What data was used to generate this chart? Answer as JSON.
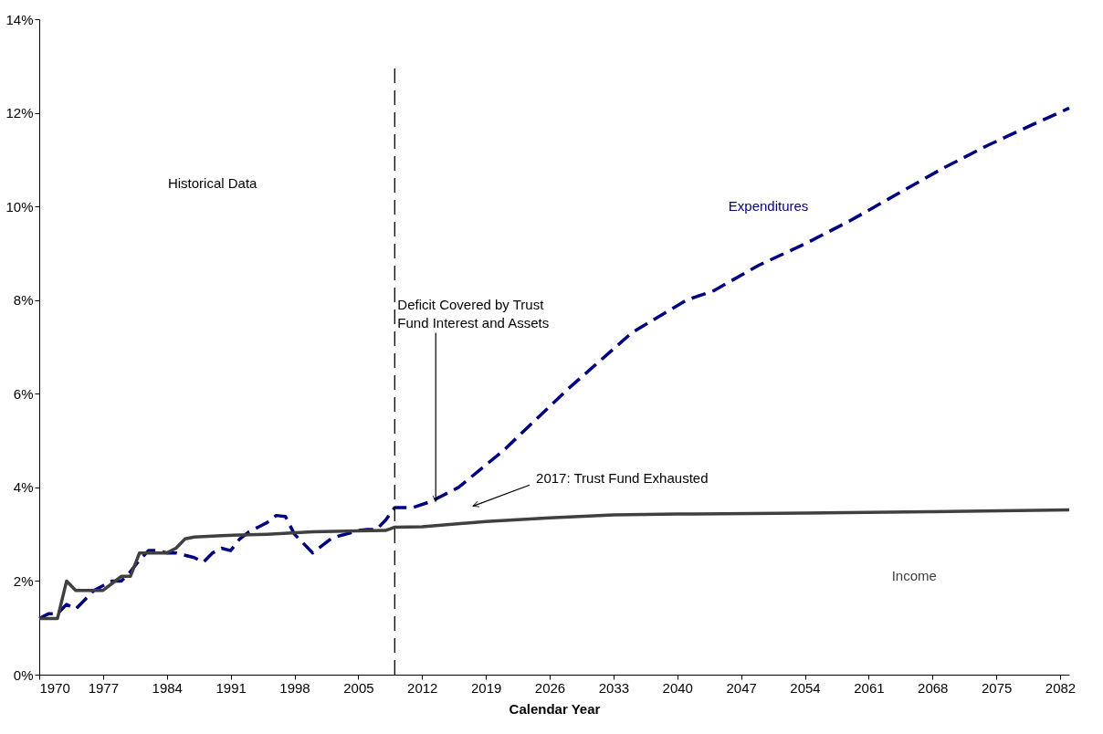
{
  "chart_data": {
    "type": "line",
    "xlabel": "Calendar Year",
    "xlim": [
      1970,
      2083
    ],
    "xticks": [
      1970,
      1977,
      1984,
      1991,
      1998,
      2005,
      2012,
      2019,
      2026,
      2033,
      2040,
      2047,
      2054,
      2061,
      2068,
      2075,
      2082
    ],
    "ylim": [
      0,
      14
    ],
    "yticks": [
      {
        "value": 0,
        "label": "0%"
      },
      {
        "value": 2,
        "label": "2%"
      },
      {
        "value": 4,
        "label": "4%"
      },
      {
        "value": 6,
        "label": "6%"
      },
      {
        "value": 8,
        "label": "8%"
      },
      {
        "value": 10,
        "label": "10%"
      },
      {
        "value": 12,
        "label": "12%"
      },
      {
        "value": 14,
        "label": "14%"
      }
    ],
    "grid": false,
    "legend": false,
    "marker": "none",
    "series": [
      {
        "name": "Expenditures",
        "color": "#000080",
        "line_style": "dashed",
        "x": [
          1970,
          1971,
          1972,
          1973,
          1974,
          1975,
          1976,
          1977,
          1978,
          1979,
          1980,
          1981,
          1982,
          1983,
          1984,
          1985,
          1986,
          1987,
          1988,
          1989,
          1990,
          1991,
          1992,
          1993,
          1994,
          1995,
          1996,
          1997,
          1998,
          1999,
          2000,
          2001,
          2002,
          2003,
          2004,
          2005,
          2006,
          2007,
          2008,
          2009,
          2011,
          2013,
          2016,
          2021,
          2028,
          2035,
          2041,
          2044,
          2049,
          2054,
          2059,
          2064,
          2069,
          2074,
          2079,
          2083
        ],
        "values": [
          1.2,
          1.3,
          1.3,
          1.5,
          1.4,
          1.6,
          1.8,
          1.9,
          2.0,
          2.0,
          2.2,
          2.45,
          2.65,
          2.65,
          2.6,
          2.6,
          2.55,
          2.5,
          2.4,
          2.6,
          2.7,
          2.65,
          2.9,
          3.05,
          3.15,
          3.25,
          3.4,
          3.38,
          3.0,
          2.8,
          2.6,
          2.75,
          2.9,
          2.97,
          3.02,
          3.08,
          3.1,
          3.1,
          3.3,
          3.57,
          3.57,
          3.7,
          4.0,
          4.8,
          6.1,
          7.3,
          8.0,
          8.2,
          8.75,
          9.2,
          9.7,
          10.25,
          10.8,
          11.3,
          11.75,
          12.1
        ]
      },
      {
        "name": "Income",
        "color": "#404040",
        "line_style": "solid",
        "x": [
          1970,
          1971,
          1972,
          1973,
          1974,
          1975,
          1976,
          1977,
          1978,
          1979,
          1980,
          1981,
          1982,
          1983,
          1984,
          1985,
          1986,
          1987,
          1990,
          1995,
          2000,
          2005,
          2008,
          2009,
          2012,
          2019,
          2026,
          2033,
          2040,
          2054,
          2068,
          2083
        ],
        "values": [
          1.2,
          1.2,
          1.2,
          2.0,
          1.8,
          1.8,
          1.8,
          1.8,
          1.95,
          2.1,
          2.1,
          2.6,
          2.6,
          2.6,
          2.6,
          2.7,
          2.9,
          2.94,
          2.97,
          3.0,
          3.05,
          3.07,
          3.08,
          3.15,
          3.16,
          3.27,
          3.35,
          3.41,
          3.43,
          3.45,
          3.48,
          3.52
        ]
      }
    ],
    "ref_lines": [
      {
        "axis": "x",
        "value": 2009,
        "line_style": "dashed",
        "color": "#000000"
      }
    ],
    "annotations": [
      "Historical Data",
      {
        "text": "Deficit Covered by Trust Fund Interest and Assets",
        "x": 2013.5,
        "y": 3.7
      },
      "2017: Trust Fund Exhausted"
    ]
  }
}
